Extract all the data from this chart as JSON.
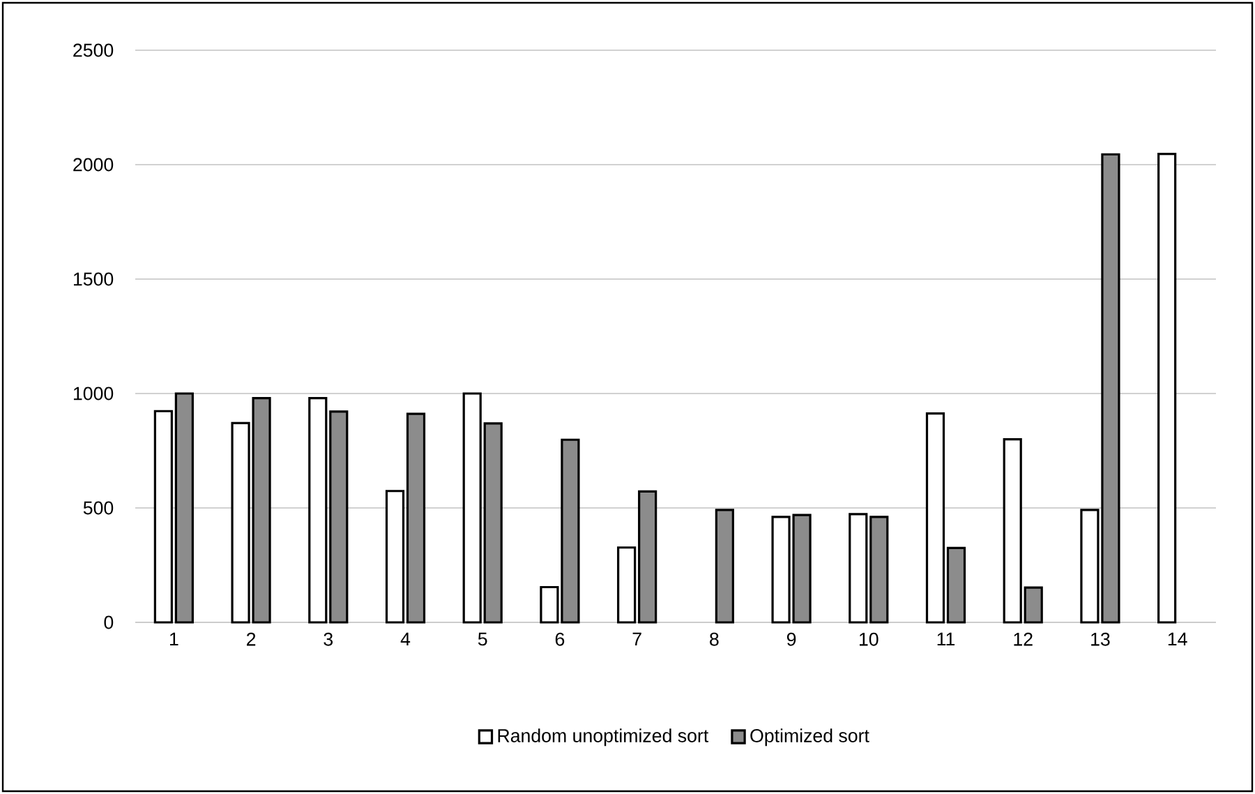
{
  "chart_data": {
    "type": "bar",
    "categories": [
      "1",
      "2",
      "3",
      "4",
      "5",
      "6",
      "7",
      "8",
      "9",
      "10",
      "11",
      "12",
      "13",
      "14"
    ],
    "series": [
      {
        "name": "Random unoptimized  sort",
        "color": "#ffffff",
        "values": [
          923,
          871,
          980,
          574,
          1000,
          154,
          327,
          null,
          461,
          473,
          913,
          800,
          491,
          2047
        ]
      },
      {
        "name": "Optimized sort",
        "color": "#8c8c8c",
        "values": [
          1000,
          980,
          921,
          911,
          869,
          798,
          572,
          491,
          469,
          461,
          325,
          152,
          2045,
          null
        ]
      }
    ],
    "ylim": [
      0,
      2500
    ],
    "yticks": [
      0,
      500,
      1000,
      1500,
      2000,
      2500
    ],
    "grid": "y",
    "legend": "bottom"
  }
}
